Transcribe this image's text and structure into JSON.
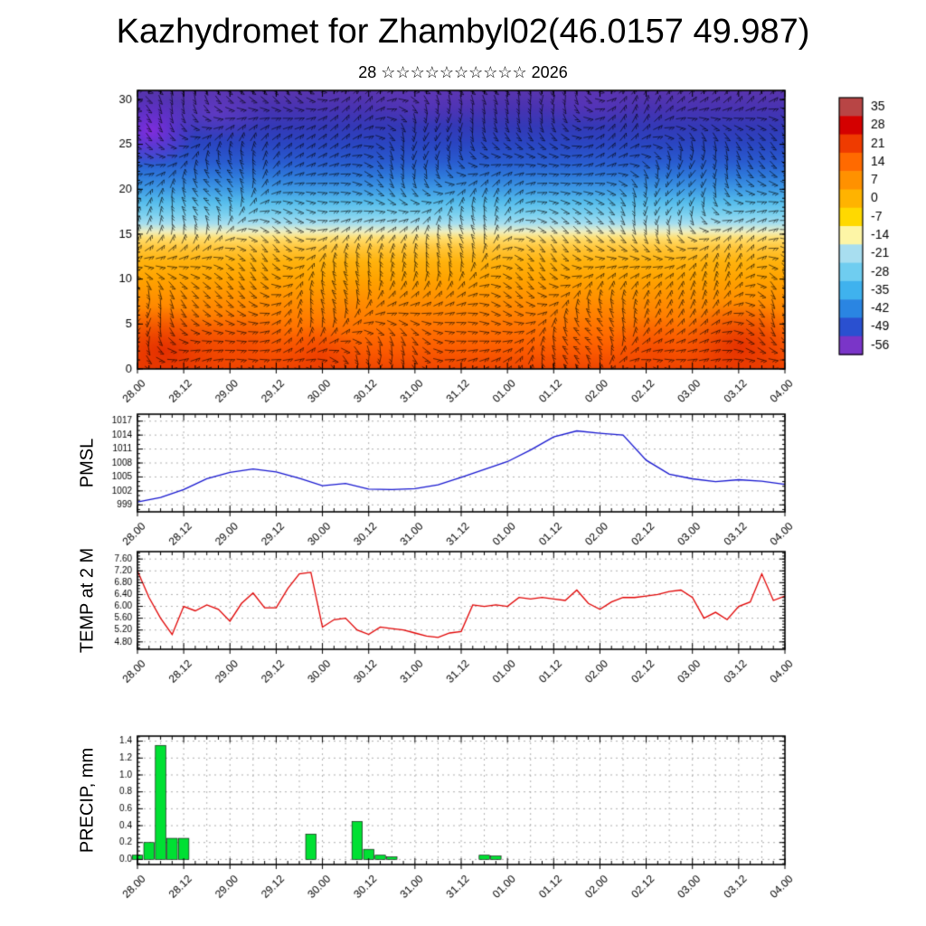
{
  "title": "Kazhydromet for Zhambyl02(46.0157 49.987)",
  "subtitle": {
    "text": "28 ☆☆☆☆☆☆☆☆☆☆ 2026"
  },
  "time_axis": {
    "major_labels": [
      "28.00",
      "28.12",
      "29.00",
      "29.12",
      "30.00",
      "30.12",
      "31.00",
      "31.12",
      "01.00",
      "01.12",
      "02.00",
      "02.12",
      "03.00",
      "03.12",
      "04.00"
    ],
    "hours_total": 168,
    "major_step_hours": 12,
    "minor_step_hours": 3
  },
  "colorbar": {
    "labels": [
      "35",
      "28",
      "21",
      "14",
      "7",
      "0",
      "-7",
      "-14",
      "-21",
      "-28",
      "-35",
      "-42",
      "-49",
      "-56"
    ],
    "colors": [
      "#b84545",
      "#d40000",
      "#ef3b00",
      "#ff6a00",
      "#ff9100",
      "#ffb300",
      "#ffd900",
      "#fdf5a6",
      "#a8def0",
      "#6fcdf0",
      "#3fb2ee",
      "#2a85e2",
      "#2a50d0",
      "#7a35c8"
    ]
  },
  "chart_data": [
    {
      "type": "heatmap",
      "name": "wind-temperature-time-height-cross-section",
      "ylabel": "",
      "overlay": "wind barbs",
      "ylim": [
        0,
        30
      ],
      "yticks": [
        0,
        5,
        10,
        15,
        20,
        25,
        30
      ],
      "ytick_labels": [
        "0",
        "5",
        "10",
        "15",
        "20",
        "25",
        "30"
      ],
      "gradient_stops": [
        [
          0,
          "#ef4600"
        ],
        [
          2,
          "#fb5a00"
        ],
        [
          4,
          "#ff6d00"
        ],
        [
          6,
          "#ff8000"
        ],
        [
          8,
          "#ff9200"
        ],
        [
          10,
          "#ffa300"
        ],
        [
          12,
          "#ffb30e"
        ],
        [
          13.5,
          "#ffc63a"
        ],
        [
          14.6,
          "#ffdf72"
        ],
        [
          15.3,
          "#edeec2"
        ],
        [
          16.2,
          "#a5def0"
        ],
        [
          17.2,
          "#7cd1ef"
        ],
        [
          18.6,
          "#55bcec"
        ],
        [
          20,
          "#3e9ae5"
        ],
        [
          21.5,
          "#2e79db"
        ],
        [
          23,
          "#295cd0"
        ],
        [
          25,
          "#2a46c2"
        ],
        [
          27,
          "#3439b7"
        ],
        [
          29,
          "#4833b2"
        ],
        [
          31,
          "#5a35ae"
        ]
      ],
      "hot_spots": [
        {
          "fx": 0.04,
          "h": 2.0,
          "rx": 0.11,
          "rh": 5.0,
          "color": "#e02800",
          "alpha": 0.85
        },
        {
          "fx": 0.16,
          "h": 2.5,
          "rx": 0.09,
          "rh": 4.0,
          "color": "#ee3c00",
          "alpha": 0.6
        },
        {
          "fx": 0.28,
          "h": 1.5,
          "rx": 0.07,
          "rh": 3.5,
          "color": "#e83000",
          "alpha": 0.55
        },
        {
          "fx": 0.93,
          "h": 2.5,
          "rx": 0.1,
          "rh": 5.0,
          "color": "#e02800",
          "alpha": 0.8
        },
        {
          "fx": 0.8,
          "h": 2.0,
          "rx": 0.07,
          "rh": 4.0,
          "color": "#ee3c00",
          "alpha": 0.5
        },
        {
          "fx": 0.02,
          "h": 26.5,
          "rx": 0.07,
          "rh": 4.0,
          "color": "#8a2be2",
          "alpha": 0.9
        },
        {
          "fx": 0.12,
          "h": 28.5,
          "rx": 0.08,
          "rh": 3.0,
          "color": "#7a3fd0",
          "alpha": 0.5
        },
        {
          "fx": 0.45,
          "h": 30.0,
          "rx": 0.1,
          "rh": 3.0,
          "color": "#6638c0",
          "alpha": 0.4
        },
        {
          "fx": 0.7,
          "h": 29.5,
          "rx": 0.08,
          "rh": 2.5,
          "color": "#6a36c4",
          "alpha": 0.35
        }
      ]
    },
    {
      "type": "line",
      "name": "pmsl",
      "ylabel": "PMSL",
      "color": "#1515cf",
      "ylim": [
        999,
        1017
      ],
      "yticks": [
        999,
        1002,
        1005,
        1008,
        1011,
        1014,
        1017
      ],
      "ytick_labels": [
        "999",
        "1002",
        "1005",
        "1008",
        "1011",
        "1014",
        "1017"
      ],
      "x_step_hours": 6,
      "values": [
        999.6,
        1000.6,
        1002.3,
        1004.6,
        1006.0,
        1006.7,
        1006.1,
        1004.7,
        1003.1,
        1003.6,
        1002.4,
        1002.3,
        1002.5,
        1003.3,
        1004.9,
        1006.6,
        1008.3,
        1010.8,
        1013.6,
        1014.9,
        1014.4,
        1014.0,
        1008.6,
        1005.6,
        1004.6,
        1004.0,
        1004.4,
        1004.1,
        1003.4
      ]
    },
    {
      "type": "line",
      "name": "temp-2m",
      "ylabel": "TEMP at 2 M",
      "color": "#e00000",
      "ylim": [
        4.8,
        7.6
      ],
      "yticks": [
        4.8,
        5.2,
        5.6,
        6.0,
        6.4,
        6.8,
        7.2,
        7.6
      ],
      "ytick_labels": [
        "4.80",
        "5.20",
        "5.60",
        "6.00",
        "6.40",
        "6.80",
        "7.20",
        "7.60"
      ],
      "x_step_hours": 3,
      "values": [
        7.2,
        6.3,
        5.6,
        5.05,
        6.0,
        5.85,
        6.05,
        5.9,
        5.5,
        6.1,
        6.45,
        5.95,
        5.95,
        6.6,
        7.1,
        7.15,
        5.3,
        5.55,
        5.6,
        5.2,
        5.05,
        5.3,
        5.25,
        5.2,
        5.1,
        5.0,
        4.95,
        5.1,
        5.15,
        6.05,
        6.0,
        6.05,
        6.0,
        6.3,
        6.25,
        6.3,
        6.25,
        6.2,
        6.55,
        6.1,
        5.9,
        6.15,
        6.3,
        6.3,
        6.35,
        6.4,
        6.5,
        6.55,
        6.3,
        5.6,
        5.8,
        5.55,
        6.0,
        6.15,
        7.1,
        6.2,
        6.35
      ]
    },
    {
      "type": "bar",
      "name": "precip",
      "ylabel": "PRECIP, mm",
      "color": "#00e033",
      "ylim": [
        0,
        1.4
      ],
      "yticks": [
        0.0,
        0.2,
        0.4,
        0.6,
        0.8,
        1.0,
        1.2,
        1.4
      ],
      "ytick_labels": [
        "0.0",
        "0.2",
        "0.4",
        "0.6",
        "0.8",
        "1.0",
        "1.2",
        "1.4"
      ],
      "x_step_hours": 3,
      "values": [
        0.05,
        0.2,
        1.35,
        0.25,
        0.25,
        0,
        0,
        0,
        0,
        0,
        0,
        0,
        0,
        0,
        0,
        0.3,
        0,
        0,
        0,
        0.45,
        0.12,
        0.05,
        0.03,
        0,
        0,
        0,
        0,
        0,
        0,
        0,
        0.05,
        0.04,
        0,
        0,
        0,
        0,
        0,
        0,
        0,
        0,
        0,
        0,
        0,
        0,
        0,
        0,
        0,
        0,
        0,
        0,
        0,
        0,
        0,
        0,
        0,
        0,
        0
      ]
    }
  ]
}
